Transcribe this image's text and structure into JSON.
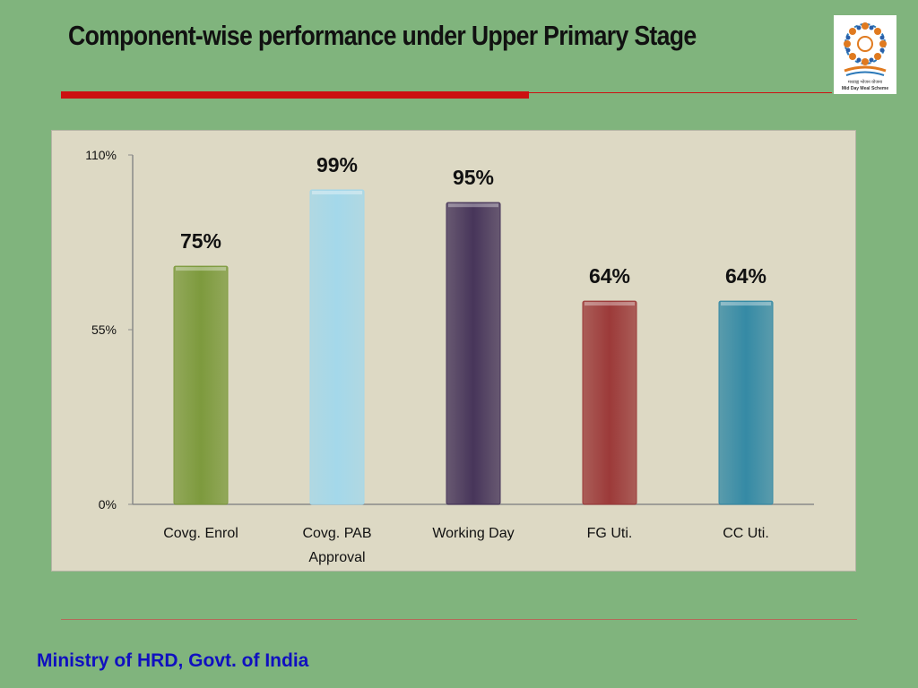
{
  "slide": {
    "title": "Component-wise performance under Upper Primary Stage",
    "footer": "Ministry of HRD, Govt. of India",
    "logo_text_line1": "मध्याह्न भोजन योजना",
    "logo_text_line2": "Mid Day Meal Scheme"
  },
  "chart_data": {
    "type": "bar",
    "title": "",
    "xlabel": "",
    "ylabel": "",
    "categories": [
      "Covg. Enrol",
      "Covg. PAB Approval",
      "Working Day",
      "FG Uti.",
      "CC Uti."
    ],
    "category_lines": [
      [
        "Covg. Enrol"
      ],
      [
        "Covg. PAB",
        "Approval"
      ],
      [
        "Working Day"
      ],
      [
        "FG Uti."
      ],
      [
        "CC Uti."
      ]
    ],
    "values": [
      75,
      99,
      95,
      64,
      64
    ],
    "data_labels": [
      "75%",
      "99%",
      "95%",
      "64%",
      "64%"
    ],
    "colors": [
      "#7d9a3d",
      "#a4d8ea",
      "#47355a",
      "#9c3a39",
      "#358aa5"
    ],
    "ylim": [
      0,
      110
    ],
    "y_ticks": [
      0,
      55,
      110
    ],
    "y_tick_labels": [
      "0%",
      "55%",
      "110%"
    ],
    "grid": false,
    "legend": "none",
    "background": "#ddd9c4"
  }
}
